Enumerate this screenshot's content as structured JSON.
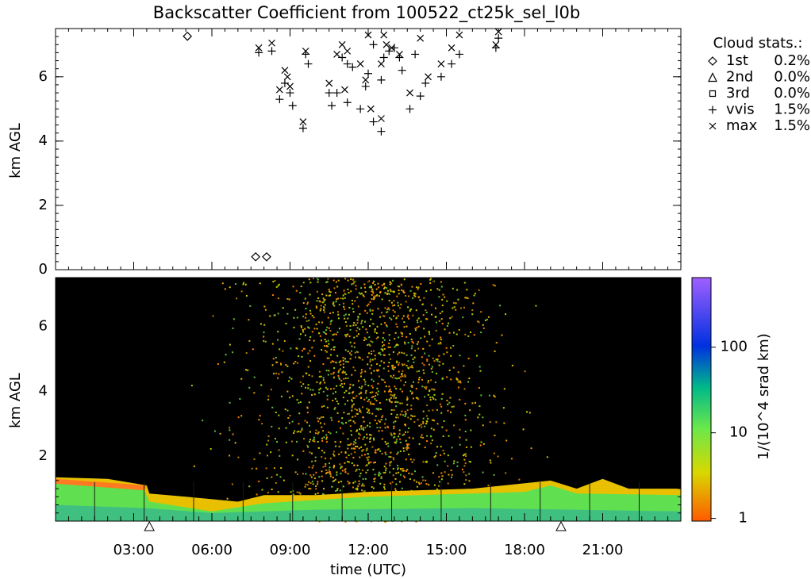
{
  "chart_data": [
    {
      "type": "scatter",
      "title": "Backscatter Coefficient from 100522_ct25k_sel_l0b",
      "ylabel": "km AGL",
      "xlim": [
        0,
        24
      ],
      "ylim": [
        0,
        7.5
      ],
      "yticks": [
        0,
        2,
        4,
        6
      ],
      "legend_title": "Cloud stats.:",
      "series": [
        {
          "name": "1st",
          "marker": "diamond",
          "color": "#000000",
          "percent": {
            "value": 0.2,
            "label": "0.2%"
          },
          "x": [
            5.06,
            7.68,
            8.1
          ],
          "values": [
            7.26,
            0.4,
            0.4
          ]
        },
        {
          "name": "2nd",
          "marker": "triangle",
          "color": "#000000",
          "percent": {
            "value": 0.0,
            "label": "0.0%"
          },
          "x": [],
          "values": []
        },
        {
          "name": "3rd",
          "marker": "square",
          "color": "#000000",
          "percent": {
            "value": 0.0,
            "label": "0.0%"
          },
          "x": [],
          "values": []
        },
        {
          "name": "vvis",
          "marker": "plus",
          "color": "#000000",
          "percent": {
            "value": 1.5,
            "label": "1.5%"
          },
          "x": [
            7.8,
            8.3,
            8.6,
            8.8,
            9.0,
            9.1,
            9.5,
            9.6,
            9.7,
            10.5,
            10.6,
            10.8,
            11.0,
            11.2,
            11.2,
            11.4,
            11.7,
            11.9,
            12.0,
            12.2,
            12.2,
            12.5,
            12.5,
            12.6,
            12.8,
            13.0,
            13.2,
            13.3,
            13.6,
            13.8,
            14.0,
            14.2,
            14.8,
            15.2,
            15.5,
            16.9,
            17.0
          ],
          "values": [
            6.75,
            6.8,
            5.3,
            5.8,
            5.5,
            5.1,
            4.4,
            6.7,
            6.4,
            5.5,
            5.1,
            5.5,
            6.6,
            5.2,
            6.4,
            6.3,
            5.0,
            5.7,
            6.1,
            4.6,
            7.0,
            4.3,
            5.9,
            6.6,
            6.8,
            6.9,
            6.6,
            6.2,
            5.0,
            6.7,
            5.4,
            5.8,
            6.0,
            6.4,
            6.7,
            6.9,
            7.2
          ]
        },
        {
          "name": "max",
          "marker": "cross",
          "color": "#000000",
          "percent": {
            "value": 1.5,
            "label": "1.5%"
          },
          "x": [
            7.8,
            8.3,
            8.6,
            8.8,
            8.9,
            9.0,
            9.5,
            9.6,
            10.5,
            10.8,
            11.0,
            11.1,
            11.2,
            11.7,
            11.9,
            12.0,
            12.1,
            12.5,
            12.5,
            12.6,
            12.7,
            12.9,
            13.2,
            13.6,
            14.0,
            14.3,
            14.8,
            15.2,
            15.5,
            16.9,
            17.0
          ],
          "values": [
            6.9,
            7.05,
            5.6,
            6.2,
            6.0,
            5.7,
            4.6,
            6.8,
            5.8,
            6.7,
            7.0,
            5.6,
            6.8,
            6.4,
            5.9,
            7.3,
            5.0,
            4.7,
            6.4,
            7.3,
            7.0,
            6.9,
            6.7,
            5.5,
            7.2,
            6.0,
            6.4,
            6.9,
            7.3,
            7.0,
            7.4
          ]
        }
      ]
    },
    {
      "type": "heatmap",
      "ylabel": "km AGL",
      "xlabel": "time (UTC)",
      "xlim": [
        0,
        24
      ],
      "xticks": [
        {
          "value": 3,
          "label": "03:00"
        },
        {
          "value": 6,
          "label": "06:00"
        },
        {
          "value": 9,
          "label": "09:00"
        },
        {
          "value": 12,
          "label": "12:00"
        },
        {
          "value": 15,
          "label": "15:00"
        },
        {
          "value": 18,
          "label": "18:00"
        },
        {
          "value": 21,
          "label": "21:00"
        }
      ],
      "ylim": [
        0,
        7.5
      ],
      "yticks": [
        2,
        4,
        6
      ],
      "markers_x": [
        3.6,
        19.4
      ],
      "colorbar": {
        "label": "1/(10^4 srad km)",
        "log": true,
        "lim": [
          0.93,
          650
        ],
        "ticks": [
          1,
          10,
          100
        ]
      }
    }
  ]
}
